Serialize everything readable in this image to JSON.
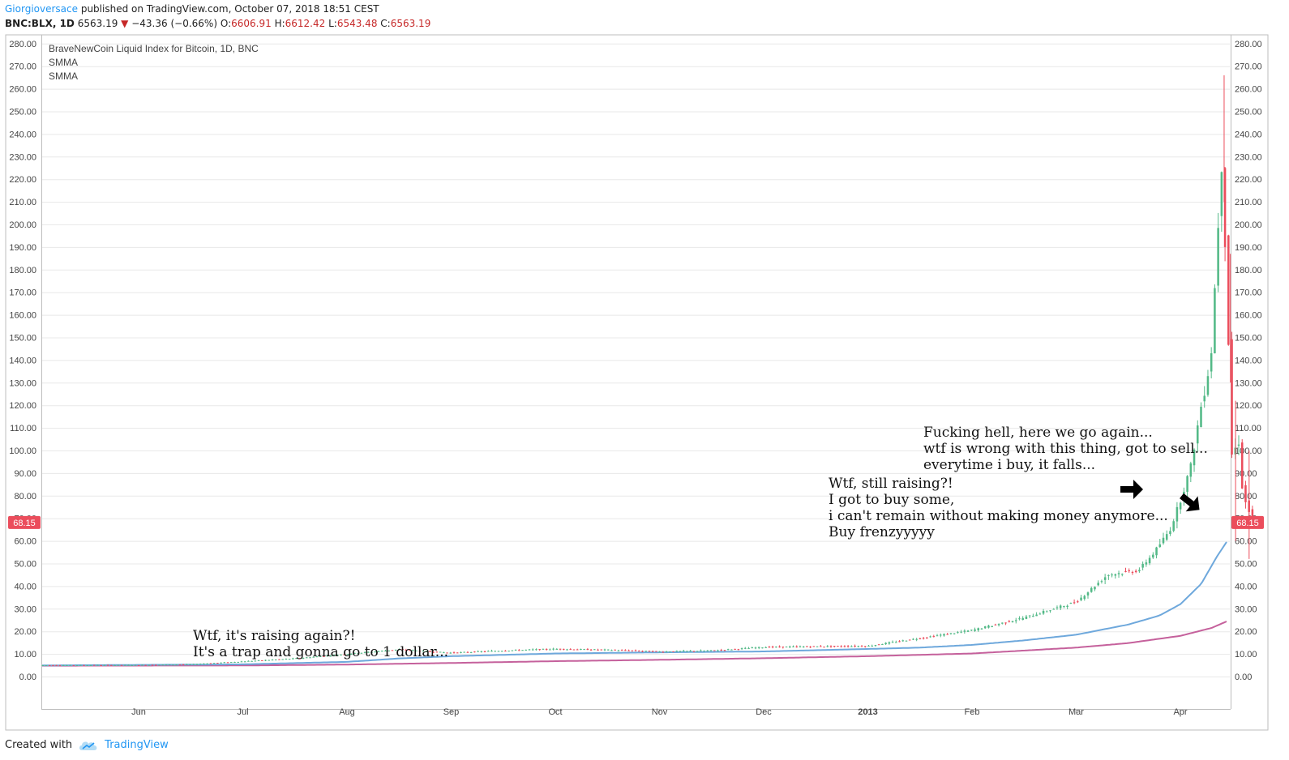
{
  "header": {
    "author": "Giorgioversace",
    "published_text": "published on TradingView.com, October 07, 2018 18:51 CEST"
  },
  "quote": {
    "symbol": "BNC:BLX, 1D",
    "last": "6563.19",
    "change": "−43.36 (−0.66%)",
    "open_label": "O:",
    "open": "6606.91",
    "high_label": "H:",
    "high": "6612.42",
    "low_label": "L:",
    "low": "6543.48",
    "close_label": "C:",
    "close": "6563.19"
  },
  "legend": {
    "title": "BraveNewCoin Liquid Index for Bitcoin, 1D, BNC",
    "indicator1": "SMMA",
    "indicator2": "SMMA"
  },
  "price_label": "68.15",
  "footer": {
    "created_with": "Created with",
    "brand": "TradingView"
  },
  "colors": {
    "up": "#53b987",
    "down": "#eb4d5c",
    "smma_fast": "#6ea8dc",
    "smma_slow": "#c5619c",
    "price_tag": "#eb4d5c",
    "grid": "#e8e8e8",
    "axis_text": "#444444"
  },
  "chart_data": {
    "type": "candlestick",
    "y_ticks": [
      "280.00",
      "270.00",
      "260.00",
      "250.00",
      "240.00",
      "230.00",
      "220.00",
      "210.00",
      "200.00",
      "190.00",
      "180.00",
      "170.00",
      "160.00",
      "150.00",
      "140.00",
      "130.00",
      "120.00",
      "110.00",
      "100.00",
      "90.00",
      "80.00",
      "70.00",
      "60.00",
      "50.00",
      "40.00",
      "30.00",
      "20.00",
      "10.00",
      "0.00"
    ],
    "x_ticks": [
      "Jun",
      "Jul",
      "Aug",
      "Sep",
      "Oct",
      "Nov",
      "Dec",
      "2013",
      "Feb",
      "Mar",
      "Apr"
    ],
    "ylim": [
      0,
      280
    ],
    "last_price": 68.15,
    "price_series": [
      {
        "m": -1.0,
        "v": 5.0
      },
      {
        "m": 0.0,
        "v": 5.1
      },
      {
        "m": 0.5,
        "v": 5.4
      },
      {
        "m": 1.0,
        "v": 6.7
      },
      {
        "m": 1.5,
        "v": 8.0
      },
      {
        "m": 2.0,
        "v": 10.0
      },
      {
        "m": 2.5,
        "v": 12.0
      },
      {
        "m": 2.8,
        "v": 11.0
      },
      {
        "m": 3.0,
        "v": 10.5
      },
      {
        "m": 3.5,
        "v": 11.5
      },
      {
        "m": 4.0,
        "v": 12.2
      },
      {
        "m": 4.5,
        "v": 11.8
      },
      {
        "m": 5.0,
        "v": 11.0
      },
      {
        "m": 5.5,
        "v": 11.5
      },
      {
        "m": 6.0,
        "v": 13.0
      },
      {
        "m": 6.5,
        "v": 13.3
      },
      {
        "m": 7.0,
        "v": 13.5
      },
      {
        "m": 7.5,
        "v": 17.0
      },
      {
        "m": 8.0,
        "v": 20.5
      },
      {
        "m": 8.5,
        "v": 26.0
      },
      {
        "m": 9.0,
        "v": 33.0
      },
      {
        "m": 9.3,
        "v": 45.0
      },
      {
        "m": 9.6,
        "v": 47.0
      },
      {
        "m": 9.75,
        "v": 55.0
      },
      {
        "m": 9.9,
        "v": 65.0
      },
      {
        "m": 10.0,
        "v": 78.0
      },
      {
        "m": 10.1,
        "v": 93.0
      },
      {
        "m": 10.2,
        "v": 120.0
      },
      {
        "m": 10.25,
        "v": 130.0
      },
      {
        "m": 10.3,
        "v": 145.0
      },
      {
        "m": 10.35,
        "v": 190.0
      },
      {
        "m": 10.4,
        "v": 230.0
      },
      {
        "m": 10.45,
        "v": 165.0
      },
      {
        "m": 10.5,
        "v": 90.0
      },
      {
        "m": 10.55,
        "v": 110.0
      },
      {
        "m": 10.6,
        "v": 80.0
      },
      {
        "m": 10.7,
        "v": 68.15
      }
    ],
    "spikes": [
      {
        "m": 10.42,
        "low": 210,
        "high": 266
      },
      {
        "m": 10.48,
        "low": 130,
        "high": 187
      },
      {
        "m": 10.53,
        "low": 60,
        "high": 122
      },
      {
        "m": 10.66,
        "low": 52,
        "high": 100
      }
    ],
    "smma_fast": [
      {
        "m": -1.0,
        "v": 4.9
      },
      {
        "m": 1.0,
        "v": 5.4
      },
      {
        "m": 2.0,
        "v": 6.5
      },
      {
        "m": 2.5,
        "v": 8.0
      },
      {
        "m": 3.0,
        "v": 9.0
      },
      {
        "m": 4.0,
        "v": 10.2
      },
      {
        "m": 5.0,
        "v": 10.7
      },
      {
        "m": 6.0,
        "v": 11.1
      },
      {
        "m": 7.0,
        "v": 12.2
      },
      {
        "m": 7.5,
        "v": 12.8
      },
      {
        "m": 8.0,
        "v": 14.0
      },
      {
        "m": 8.5,
        "v": 16.0
      },
      {
        "m": 9.0,
        "v": 18.5
      },
      {
        "m": 9.5,
        "v": 23.0
      },
      {
        "m": 9.8,
        "v": 27.0
      },
      {
        "m": 10.0,
        "v": 32.0
      },
      {
        "m": 10.2,
        "v": 41.0
      },
      {
        "m": 10.35,
        "v": 53.0
      },
      {
        "m": 10.45,
        "v": 60.0
      },
      {
        "m": 10.6,
        "v": 63.0
      },
      {
        "m": 10.7,
        "v": 63.3
      }
    ],
    "smma_slow": [
      {
        "m": -1.0,
        "v": 4.8
      },
      {
        "m": 1.0,
        "v": 4.9
      },
      {
        "m": 2.0,
        "v": 5.3
      },
      {
        "m": 3.0,
        "v": 6.0
      },
      {
        "m": 4.0,
        "v": 6.8
      },
      {
        "m": 5.0,
        "v": 7.4
      },
      {
        "m": 6.0,
        "v": 8.1
      },
      {
        "m": 7.0,
        "v": 9.0
      },
      {
        "m": 8.0,
        "v": 10.2
      },
      {
        "m": 9.0,
        "v": 12.8
      },
      {
        "m": 9.5,
        "v": 14.8
      },
      {
        "m": 10.0,
        "v": 18.0
      },
      {
        "m": 10.3,
        "v": 21.5
      },
      {
        "m": 10.5,
        "v": 25.5
      },
      {
        "m": 10.7,
        "v": 27.2
      }
    ]
  },
  "annotations": [
    {
      "lines": [
        "Wtf, it's raising again?!",
        "It's a trap and gonna go to 1 dollar..."
      ]
    },
    {
      "lines": [
        "Wtf, still raising?!",
        "I got to buy some,",
        "i can't remain without making money anymore...",
        "Buy frenzyyyyy"
      ]
    },
    {
      "lines": [
        "Fucking hell, here we go again...",
        "wtf is wrong with this thing, got to sell...",
        "everytime i buy, it falls..."
      ]
    }
  ]
}
